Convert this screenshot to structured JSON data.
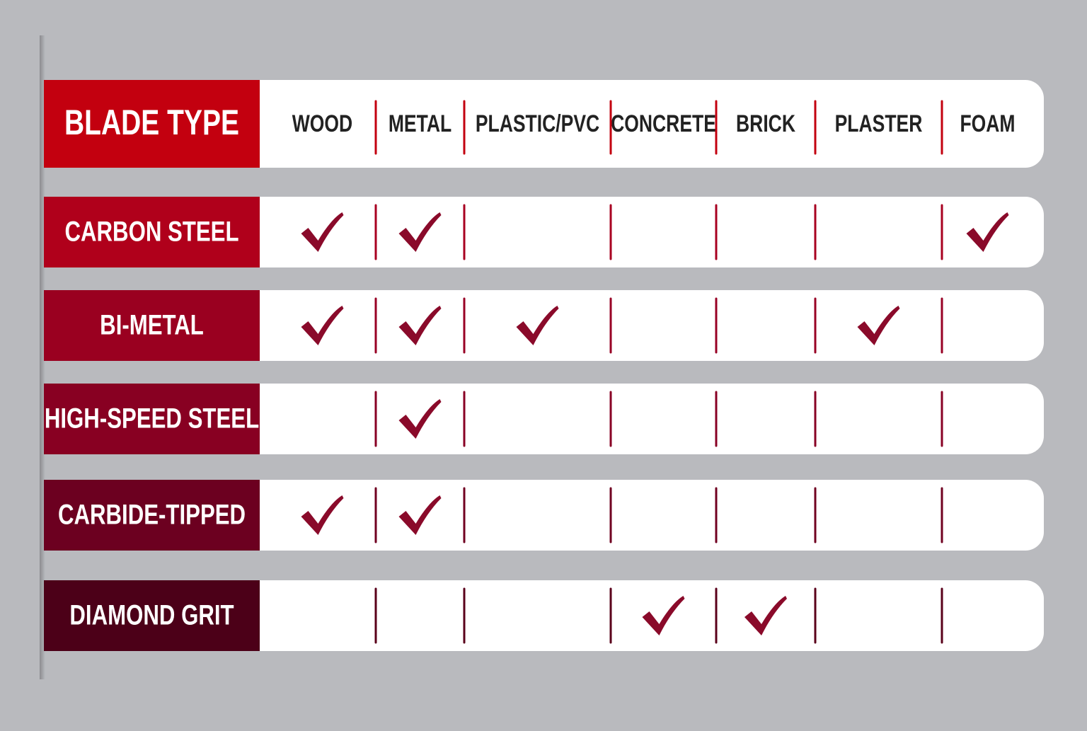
{
  "table": {
    "title": "BLADE TYPE",
    "columns": [
      "WOOD",
      "METAL",
      "PLASTIC/PVC",
      "CONCRETE",
      "BRICK",
      "PLASTER",
      "FOAM"
    ],
    "rows": [
      {
        "name": "CARBON STEEL",
        "checks": [
          true,
          true,
          false,
          false,
          false,
          false,
          true
        ]
      },
      {
        "name": "BI-METAL",
        "checks": [
          true,
          true,
          true,
          false,
          false,
          true,
          false
        ]
      },
      {
        "name": "HIGH-SPEED STEEL",
        "checks": [
          false,
          true,
          false,
          false,
          false,
          false,
          false
        ]
      },
      {
        "name": "CARBIDE-TIPPED",
        "checks": [
          true,
          true,
          false,
          false,
          false,
          false,
          false
        ]
      },
      {
        "name": "DIAMOND GRIT",
        "checks": [
          false,
          false,
          false,
          true,
          true,
          false,
          false
        ]
      }
    ]
  }
}
